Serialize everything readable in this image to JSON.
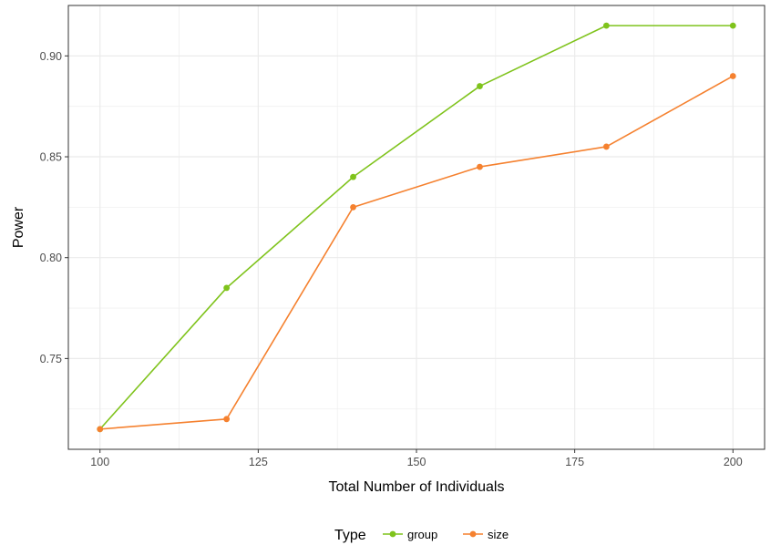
{
  "chart_data": {
    "type": "line",
    "title": "",
    "xlabel": "Total Number of Individuals",
    "ylabel": "Power",
    "x": [
      100,
      120,
      140,
      160,
      180,
      200
    ],
    "xlim": [
      95,
      205
    ],
    "ylim": [
      0.705,
      0.925
    ],
    "x_ticks": [
      100,
      125,
      150,
      175,
      200
    ],
    "x_tick_labels": [
      "100",
      "125",
      "150",
      "175",
      "200"
    ],
    "y_ticks": [
      0.75,
      0.8,
      0.85,
      0.9
    ],
    "y_tick_labels": [
      "0.75",
      "0.80",
      "0.85",
      "0.90"
    ],
    "grid": true,
    "legend": {
      "title": "Type",
      "placement": "bottom"
    },
    "series": [
      {
        "name": "group",
        "color": "#7FC31C",
        "values": [
          0.715,
          0.785,
          0.84,
          0.885,
          0.915,
          0.915
        ]
      },
      {
        "name": "size",
        "color": "#F5812F",
        "values": [
          0.715,
          0.72,
          0.825,
          0.845,
          0.855,
          0.89
        ]
      }
    ]
  }
}
